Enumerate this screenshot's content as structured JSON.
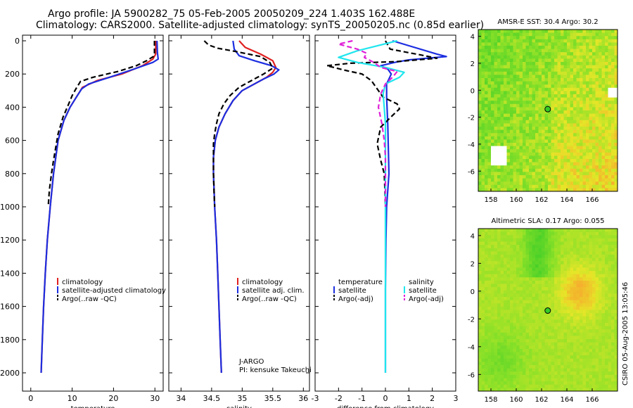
{
  "title": {
    "line1": "Argo profile: JA 5900282_75 05-Feb-2005 20050209_224 1.403S 162.488E",
    "line2": "Climatology: CARS2000. Satellite-adjusted climatology: synTS_20050205.nc (0.85d earlier)"
  },
  "credit": "CSIRO 05-Aug-2005 13:05:46",
  "colors": {
    "red": "#e02020",
    "blue": "#1c2ee0",
    "black": "#000000",
    "cyan": "#20e6ee",
    "magenta": "#e020d8"
  },
  "chart_data": [
    {
      "type": "line",
      "name": "temperature-profile",
      "xlabel": "temperature",
      "ylabel": "",
      "xlim": [
        -2,
        32
      ],
      "ylim": [
        2060,
        0
      ],
      "xticks": [
        0,
        10,
        20,
        30
      ],
      "yticks": [
        0,
        200,
        400,
        600,
        800,
        1000,
        1200,
        1400,
        1600,
        1800,
        2000
      ],
      "legend": [
        "climatology",
        "satellite-adjusted climatology",
        "Argo(..raw -QC)"
      ],
      "series": [
        {
          "name": "climatology",
          "color": "red",
          "dash": "",
          "points": [
            [
              30.2,
              0
            ],
            [
              30.2,
              80
            ],
            [
              29.5,
              110
            ],
            [
              27,
              150
            ],
            [
              22,
              200
            ],
            [
              16,
              240
            ],
            [
              12.5,
              280
            ],
            [
              11,
              340
            ],
            [
              9.5,
              400
            ],
            [
              8,
              480
            ],
            [
              6.6,
              600
            ],
            [
              5.5,
              800
            ],
            [
              4.7,
              1000
            ],
            [
              4,
              1200
            ],
            [
              3.5,
              1400
            ],
            [
              3.1,
              1600
            ],
            [
              2.8,
              1800
            ],
            [
              2.5,
              2000
            ]
          ]
        },
        {
          "name": "satellite-adjusted climatology",
          "color": "blue",
          "dash": "",
          "points": [
            [
              30.5,
              0
            ],
            [
              30.6,
              70
            ],
            [
              30.8,
              110
            ],
            [
              29.5,
              130
            ],
            [
              25,
              170
            ],
            [
              19,
              220
            ],
            [
              14,
              260
            ],
            [
              12.3,
              290
            ],
            [
              11,
              340
            ],
            [
              9.5,
              400
            ],
            [
              8,
              480
            ],
            [
              6.6,
              600
            ],
            [
              5.5,
              800
            ],
            [
              4.7,
              1000
            ],
            [
              4,
              1200
            ],
            [
              3.5,
              1400
            ],
            [
              3.1,
              1600
            ],
            [
              2.8,
              1800
            ],
            [
              2.5,
              2000
            ]
          ]
        },
        {
          "name": "Argo(..raw -QC)",
          "color": "black",
          "dash": "7,4",
          "points": [
            [
              29.9,
              0
            ],
            [
              29.9,
              75
            ],
            [
              29.6,
              95
            ],
            [
              28,
              120
            ],
            [
              25.5,
              150
            ],
            [
              21,
              185
            ],
            [
              15,
              220
            ],
            [
              12,
              245
            ],
            [
              11,
              285
            ],
            [
              10,
              330
            ],
            [
              9,
              390
            ],
            [
              7.8,
              460
            ],
            [
              6.6,
              560
            ],
            [
              5.5,
              720
            ],
            [
              5,
              800
            ],
            [
              4.5,
              900
            ],
            [
              4.2,
              1000
            ]
          ]
        }
      ]
    },
    {
      "type": "line",
      "name": "salinity-profile",
      "xlabel": "salinity",
      "xlim": [
        33.8,
        36.1
      ],
      "ylim": [
        2060,
        0
      ],
      "xticks": [
        34,
        34.5,
        35,
        35.5,
        36
      ],
      "legend": [
        "climatology",
        "satellite adj. clim.",
        "Argo(..raw -QC)"
      ],
      "annotation": [
        "J-ARGO",
        "PI: kensuke Takeuchi"
      ],
      "series": [
        {
          "name": "climatology",
          "color": "red",
          "dash": "",
          "points": [
            [
              34.95,
              0
            ],
            [
              35.05,
              40
            ],
            [
              35.3,
              80
            ],
            [
              35.5,
              120
            ],
            [
              35.55,
              160
            ],
            [
              35.5,
              190
            ],
            [
              35.4,
              220
            ],
            [
              35.2,
              260
            ],
            [
              35.0,
              300
            ],
            [
              34.85,
              360
            ],
            [
              34.72,
              440
            ],
            [
              34.62,
              520
            ],
            [
              34.56,
              600
            ],
            [
              34.53,
              700
            ],
            [
              34.53,
              800
            ],
            [
              34.55,
              1000
            ],
            [
              34.58,
              1200
            ],
            [
              34.6,
              1400
            ],
            [
              34.62,
              1600
            ],
            [
              34.64,
              1800
            ],
            [
              34.66,
              2000
            ]
          ]
        },
        {
          "name": "satellite adj. clim.",
          "color": "blue",
          "dash": "",
          "points": [
            [
              34.85,
              0
            ],
            [
              34.87,
              50
            ],
            [
              34.95,
              90
            ],
            [
              35.2,
              120
            ],
            [
              35.48,
              150
            ],
            [
              35.6,
              175
            ],
            [
              35.52,
              200
            ],
            [
              35.35,
              230
            ],
            [
              35.15,
              270
            ],
            [
              35.0,
              300
            ],
            [
              34.85,
              360
            ],
            [
              34.72,
              440
            ],
            [
              34.62,
              520
            ],
            [
              34.56,
              600
            ],
            [
              34.53,
              700
            ],
            [
              34.53,
              800
            ],
            [
              34.55,
              1000
            ],
            [
              34.58,
              1200
            ],
            [
              34.6,
              1400
            ],
            [
              34.62,
              1600
            ],
            [
              34.64,
              1800
            ],
            [
              34.66,
              2000
            ]
          ]
        },
        {
          "name": "Argo(..raw -QC)",
          "color": "black",
          "dash": "7,4",
          "points": [
            [
              34.38,
              0
            ],
            [
              34.45,
              25
            ],
            [
              34.6,
              45
            ],
            [
              34.9,
              65
            ],
            [
              35.3,
              95
            ],
            [
              35.45,
              130
            ],
            [
              35.5,
              165
            ],
            [
              35.35,
              200
            ],
            [
              35.15,
              240
            ],
            [
              34.95,
              280
            ],
            [
              34.8,
              330
            ],
            [
              34.7,
              380
            ],
            [
              34.62,
              440
            ],
            [
              34.58,
              500
            ],
            [
              34.55,
              560
            ],
            [
              34.53,
              620
            ],
            [
              34.53,
              700
            ],
            [
              34.53,
              800
            ],
            [
              34.54,
              900
            ],
            [
              34.55,
              1000
            ]
          ]
        }
      ]
    },
    {
      "type": "line",
      "name": "difference-profile",
      "xlabel": "difference from climatology",
      "xlim": [
        -3,
        3
      ],
      "ylim": [
        2060,
        0
      ],
      "xticks": [
        -3,
        -2,
        -1,
        0,
        1,
        2,
        3
      ],
      "legend_left": {
        "title": "temperature",
        "items": [
          "satellite",
          "Argo(-adj)"
        ]
      },
      "legend_right": {
        "title": "salinity",
        "items": [
          "satellite",
          "Argo(-adj)"
        ]
      },
      "series": [
        {
          "name": "temperature satellite",
          "color": "blue",
          "dash": "",
          "points": [
            [
              0.3,
              0
            ],
            [
              2.2,
              80
            ],
            [
              2.6,
              95
            ],
            [
              1.0,
              115
            ],
            [
              0.4,
              130
            ],
            [
              -0.2,
              150
            ],
            [
              0.1,
              170
            ],
            [
              0.25,
              200
            ],
            [
              0.05,
              260
            ],
            [
              0.05,
              340
            ],
            [
              0.1,
              500
            ],
            [
              0.15,
              800
            ],
            [
              0.05,
              1000
            ],
            [
              0.02,
              1200
            ],
            [
              0,
              1500
            ],
            [
              0,
              2000
            ]
          ]
        },
        {
          "name": "temperature Argo(-adj)",
          "color": "black",
          "dash": "7,4",
          "points": [
            [
              0,
              0
            ],
            [
              0.2,
              50
            ],
            [
              1.5,
              85
            ],
            [
              2.2,
              105
            ],
            [
              0.5,
              125
            ],
            [
              -1.5,
              135
            ],
            [
              -2.5,
              150
            ],
            [
              -1.8,
              175
            ],
            [
              -1.0,
              200
            ],
            [
              -0.6,
              240
            ],
            [
              -0.3,
              300
            ],
            [
              -0.1,
              340
            ],
            [
              0.5,
              380
            ],
            [
              0.6,
              410
            ],
            [
              0.3,
              450
            ],
            [
              -0.2,
              520
            ],
            [
              -0.35,
              620
            ],
            [
              -0.2,
              720
            ],
            [
              -0.05,
              800
            ],
            [
              -0.02,
              900
            ],
            [
              0,
              1000
            ]
          ]
        },
        {
          "name": "salinity satellite",
          "color": "cyan",
          "dash": "",
          "points": [
            [
              0.5,
              0
            ],
            [
              -1.2,
              60
            ],
            [
              -2.0,
              100
            ],
            [
              -1.2,
              130
            ],
            [
              0,
              160
            ],
            [
              0.8,
              190
            ],
            [
              0.6,
              220
            ],
            [
              0,
              260
            ],
            [
              -0.1,
              320
            ],
            [
              -0.05,
              400
            ],
            [
              0,
              500
            ],
            [
              0,
              800
            ],
            [
              0,
              1200
            ],
            [
              0,
              1600
            ],
            [
              0,
              2000
            ]
          ]
        },
        {
          "name": "salinity Argo(-adj)",
          "color": "magenta",
          "dash": "7,4",
          "points": [
            [
              -1.4,
              0
            ],
            [
              -2.0,
              20
            ],
            [
              -1.2,
              50
            ],
            [
              -0.8,
              75
            ],
            [
              -0.9,
              100
            ],
            [
              -0.5,
              130
            ],
            [
              -0.2,
              160
            ],
            [
              0.5,
              185
            ],
            [
              0.3,
              220
            ],
            [
              0,
              260
            ],
            [
              -0.2,
              320
            ],
            [
              -0.3,
              400
            ],
            [
              -0.15,
              500
            ],
            [
              -0.05,
              600
            ],
            [
              0,
              700
            ],
            [
              0,
              800
            ],
            [
              0,
              900
            ],
            [
              0,
              1000
            ]
          ]
        }
      ]
    },
    {
      "type": "heatmap",
      "name": "sst-map",
      "title": "AMSR-E SST: 30.4 Argo: 30.2",
      "xlim": [
        157,
        168
      ],
      "ylim": [
        -7.5,
        4.5
      ],
      "xticks": [
        158,
        160,
        162,
        164,
        166
      ],
      "yticks": [
        4,
        2,
        0,
        -2,
        -4,
        -6
      ],
      "argo_position": [
        162.488,
        -1.403
      ]
    },
    {
      "type": "heatmap",
      "name": "sla-map",
      "title": "Altimetric SLA: 0.17 Argo: 0.055",
      "xlim": [
        157,
        168
      ],
      "ylim": [
        -7.2,
        4.5
      ],
      "xticks": [
        158,
        160,
        162,
        164,
        166
      ],
      "yticks": [
        4,
        2,
        0,
        -2,
        -4,
        -6
      ],
      "argo_position": [
        162.488,
        -1.403
      ]
    }
  ]
}
